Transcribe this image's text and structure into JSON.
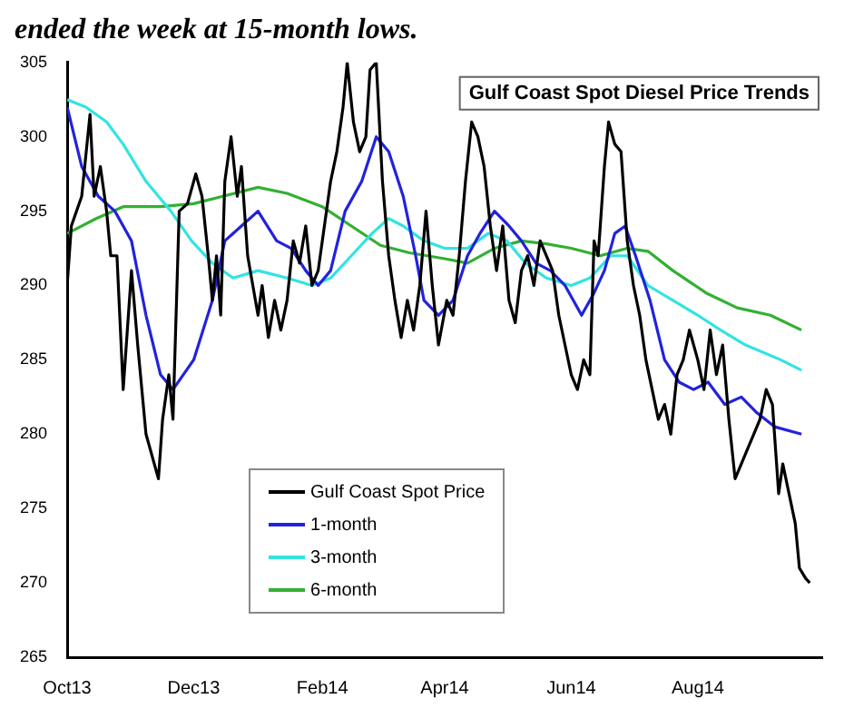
{
  "chart_data": {
    "type": "line",
    "title": "Gulf Coast Spot Diesel Price Trends",
    "annotations": [
      "ended the week at 15-month lows."
    ],
    "ylim": [
      265,
      305
    ],
    "yticks": [
      265,
      270,
      275,
      280,
      285,
      290,
      295,
      300,
      305
    ],
    "xlim": [
      "2013-10-01",
      "2014-09-30"
    ],
    "xticks": [
      {
        "value": "2013-10-01",
        "label": "Oct13"
      },
      {
        "value": "2013-12-01",
        "label": "Dec13"
      },
      {
        "value": "2014-02-01",
        "label": "Feb14"
      },
      {
        "value": "2014-04-01",
        "label": "Apr14"
      },
      {
        "value": "2014-06-01",
        "label": "Jun14"
      },
      {
        "value": "2014-08-01",
        "label": "Aug14"
      }
    ],
    "grid": false,
    "legend": "bottom left",
    "marker": "none",
    "line_style": "solid",
    "series": [
      {
        "name": "Gulf Coast Spot Price",
        "color": "#000000",
        "x": [
          "2013-10-01",
          "2013-10-03",
          "2013-10-08",
          "2013-10-12",
          "2013-10-14",
          "2013-10-17",
          "2013-10-20",
          "2013-10-22",
          "2013-10-25",
          "2013-10-28",
          "2013-11-01",
          "2013-11-04",
          "2013-11-08",
          "2013-11-12",
          "2013-11-14",
          "2013-11-16",
          "2013-11-19",
          "2013-11-21",
          "2013-11-24",
          "2013-11-28",
          "2013-12-02",
          "2013-12-05",
          "2013-12-08",
          "2013-12-10",
          "2013-12-12",
          "2013-12-14",
          "2013-12-16",
          "2013-12-19",
          "2013-12-22",
          "2013-12-24",
          "2013-12-27",
          "2014-01-01",
          "2014-01-03",
          "2014-01-06",
          "2014-01-09",
          "2014-01-12",
          "2014-01-15",
          "2014-01-18",
          "2014-01-21",
          "2014-01-24",
          "2014-01-27",
          "2014-01-30",
          "2014-02-02",
          "2014-02-05",
          "2014-02-08",
          "2014-02-11",
          "2014-02-13",
          "2014-02-16",
          "2014-02-19",
          "2014-02-22",
          "2014-02-24",
          "2014-02-27",
          "2014-03-02",
          "2014-03-05",
          "2014-03-08",
          "2014-03-11",
          "2014-03-14",
          "2014-03-17",
          "2014-03-20",
          "2014-03-23",
          "2014-03-26",
          "2014-03-29",
          "2014-04-02",
          "2014-04-05",
          "2014-04-08",
          "2014-04-11",
          "2014-04-14",
          "2014-04-17",
          "2014-04-20",
          "2014-04-23",
          "2014-04-26",
          "2014-04-29",
          "2014-05-02",
          "2014-05-05",
          "2014-05-08",
          "2014-05-11",
          "2014-05-14",
          "2014-05-17",
          "2014-05-20",
          "2014-05-23",
          "2014-05-26",
          "2014-05-29",
          "2014-06-01",
          "2014-06-04",
          "2014-06-07",
          "2014-06-10",
          "2014-06-12",
          "2014-06-14",
          "2014-06-17",
          "2014-06-19",
          "2014-06-22",
          "2014-06-25",
          "2014-06-28",
          "2014-07-01",
          "2014-07-04",
          "2014-07-07",
          "2014-07-10",
          "2014-07-13",
          "2014-07-16",
          "2014-07-19",
          "2014-07-22",
          "2014-07-25",
          "2014-07-28",
          "2014-08-01",
          "2014-08-04",
          "2014-08-07",
          "2014-08-10",
          "2014-08-13",
          "2014-08-16",
          "2014-08-19",
          "2014-08-22",
          "2014-08-25",
          "2014-08-28",
          "2014-08-31",
          "2014-09-03",
          "2014-09-06",
          "2014-09-09",
          "2014-09-11",
          "2014-09-14",
          "2014-09-17",
          "2014-09-19",
          "2014-09-22",
          "2014-09-24"
        ],
        "values": [
          290,
          294,
          296,
          301.5,
          296,
          298,
          295,
          292,
          292,
          283,
          291,
          286,
          280,
          278,
          277,
          281,
          284,
          281,
          295,
          295.5,
          297.5,
          296,
          292,
          289,
          292,
          288,
          297,
          300,
          296,
          298,
          292,
          288,
          290,
          286.5,
          289,
          287,
          289,
          293,
          291.5,
          294,
          290,
          291,
          294,
          297,
          299,
          302,
          305,
          301,
          299,
          300,
          304.5,
          305,
          297,
          292,
          289,
          286.5,
          289,
          287,
          290,
          295,
          290,
          286,
          289,
          288,
          292,
          297,
          301,
          300,
          298,
          294,
          291,
          294,
          289,
          287.5,
          291,
          292,
          290,
          293,
          292,
          291,
          288,
          286,
          284,
          283,
          285,
          284,
          293,
          292,
          298,
          301,
          299.5,
          299,
          293,
          290,
          288,
          285,
          283,
          281,
          282,
          280,
          284,
          285,
          287,
          285,
          283,
          287,
          284,
          286,
          281,
          277,
          278,
          279,
          280,
          281,
          283,
          282,
          276,
          278,
          276,
          274,
          271,
          270.3,
          270
        ]
      },
      {
        "name": "1-month",
        "color": "#2222dd",
        "x": [
          "2013-10-01",
          "2013-10-08",
          "2013-10-16",
          "2013-10-24",
          "2013-11-01",
          "2013-11-08",
          "2013-11-15",
          "2013-11-21",
          "2013-12-01",
          "2013-12-10",
          "2013-12-16",
          "2013-12-24",
          "2014-01-01",
          "2014-01-10",
          "2014-01-17",
          "2014-01-24",
          "2014-01-30",
          "2014-02-05",
          "2014-02-12",
          "2014-02-20",
          "2014-02-27",
          "2014-03-05",
          "2014-03-12",
          "2014-03-18",
          "2014-03-22",
          "2014-03-29",
          "2014-04-05",
          "2014-04-12",
          "2014-04-18",
          "2014-04-25",
          "2014-05-02",
          "2014-05-08",
          "2014-05-15",
          "2014-05-22",
          "2014-05-29",
          "2014-06-06",
          "2014-06-12",
          "2014-06-17",
          "2014-06-22",
          "2014-06-27",
          "2014-07-02",
          "2014-07-09",
          "2014-07-16",
          "2014-07-23",
          "2014-07-30",
          "2014-08-06",
          "2014-08-14",
          "2014-08-22",
          "2014-08-29",
          "2014-09-07",
          "2014-09-20"
        ],
        "values": [
          302,
          298,
          296,
          295,
          293,
          288,
          284,
          283,
          285,
          289,
          293,
          294,
          295,
          293,
          292.5,
          291,
          290,
          291,
          295,
          297,
          300,
          299,
          296,
          292,
          289,
          288,
          289,
          292,
          293.5,
          295,
          294,
          293,
          291.5,
          291,
          290,
          288,
          289.5,
          291,
          293.5,
          294,
          292,
          289,
          285,
          283.5,
          283,
          283.5,
          282,
          282.5,
          281.5,
          280.5,
          280
        ]
      },
      {
        "name": "3-month",
        "color": "#33e3e3",
        "x": [
          "2013-10-01",
          "2013-10-10",
          "2013-10-20",
          "2013-10-28",
          "2013-11-08",
          "2013-11-20",
          "2013-11-30",
          "2013-12-10",
          "2013-12-20",
          "2014-01-01",
          "2014-01-15",
          "2014-01-27",
          "2014-02-05",
          "2014-02-15",
          "2014-02-25",
          "2014-03-05",
          "2014-03-12",
          "2014-03-22",
          "2014-04-01",
          "2014-04-12",
          "2014-04-22",
          "2014-05-01",
          "2014-05-10",
          "2014-05-20",
          "2014-06-01",
          "2014-06-10",
          "2014-06-20",
          "2014-06-28",
          "2014-07-08",
          "2014-07-20",
          "2014-08-01",
          "2014-08-12",
          "2014-08-24",
          "2014-09-10",
          "2014-09-20"
        ],
        "values": [
          302.5,
          302,
          301,
          299.5,
          297,
          295,
          293,
          291.5,
          290.5,
          291,
          290.5,
          290,
          290.5,
          292,
          293.5,
          294.5,
          294,
          293,
          292.5,
          292.5,
          293.5,
          293,
          291.5,
          290.5,
          290,
          290.5,
          292,
          292,
          290,
          289,
          288,
          287,
          286,
          285,
          284.3
        ]
      },
      {
        "name": "6-month",
        "color": "#33b033",
        "x": [
          "2013-10-01",
          "2013-10-15",
          "2013-10-28",
          "2013-11-15",
          "2013-12-01",
          "2013-12-15",
          "2014-01-01",
          "2014-01-15",
          "2014-02-01",
          "2014-02-15",
          "2014-03-01",
          "2014-03-15",
          "2014-04-01",
          "2014-04-12",
          "2014-04-25",
          "2014-05-08",
          "2014-05-20",
          "2014-06-01",
          "2014-06-15",
          "2014-06-28",
          "2014-07-08",
          "2014-07-20",
          "2014-08-05",
          "2014-08-20",
          "2014-09-05",
          "2014-09-20"
        ],
        "values": [
          293.5,
          294.5,
          295.3,
          295.3,
          295.5,
          296,
          296.6,
          296.2,
          295.3,
          294,
          292.7,
          292.2,
          291.8,
          291.5,
          292.5,
          293,
          292.8,
          292.5,
          292,
          292.5,
          292.3,
          291,
          289.5,
          288.5,
          288,
          287
        ]
      }
    ]
  }
}
